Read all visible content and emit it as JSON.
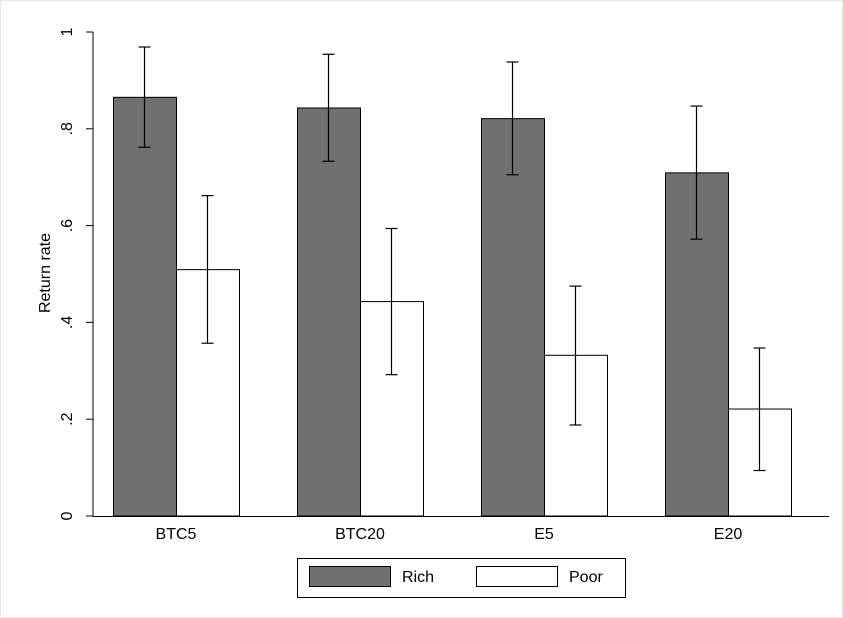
{
  "chart_data": {
    "type": "bar",
    "title": "",
    "xlabel": "",
    "ylabel": "Return rate",
    "ylim": [
      0,
      1
    ],
    "yticks": [
      0,
      0.2,
      0.4,
      0.6,
      0.8,
      1
    ],
    "ytick_labels": [
      "0",
      ".2",
      ".4",
      ".6",
      ".8",
      "1"
    ],
    "categories": [
      "BTC5",
      "BTC20",
      "E5",
      "E20"
    ],
    "series": [
      {
        "name": "Rich",
        "color": "#707070",
        "values": [
          0.865,
          0.843,
          0.821,
          0.709
        ],
        "ci_low": [
          0.762,
          0.733,
          0.705,
          0.572
        ],
        "ci_high": [
          0.969,
          0.954,
          0.938,
          0.847
        ]
      },
      {
        "name": "Poor",
        "color": "#ffffff",
        "values": [
          0.509,
          0.443,
          0.332,
          0.221
        ],
        "ci_low": [
          0.357,
          0.292,
          0.188,
          0.094
        ],
        "ci_high": [
          0.662,
          0.594,
          0.475,
          0.347
        ]
      }
    ],
    "legend_position": "bottom",
    "grid": false,
    "error_bars": true
  }
}
